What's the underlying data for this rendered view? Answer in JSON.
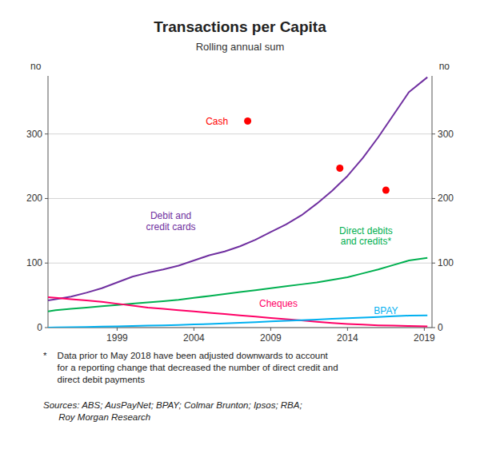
{
  "chart_data": {
    "type": "line",
    "title": "Transactions per Capita",
    "subtitle": "Rolling annual sum",
    "ylabel": "no",
    "xlim": [
      1994.5,
      2019.5
    ],
    "xticks": [
      1999,
      2004,
      2009,
      2014,
      2019
    ],
    "ylim": [
      0,
      390
    ],
    "yticks": [
      0,
      100,
      200,
      300
    ],
    "y2lim": [
      0,
      390
    ],
    "y2ticks": [
      0,
      100,
      200,
      300
    ],
    "grid": true,
    "x": [
      1994.5,
      1995,
      1996,
      1997,
      1998,
      1999,
      2000,
      2001,
      2002,
      2003,
      2004,
      2005,
      2006,
      2007,
      2008,
      2009,
      2010,
      2011,
      2012,
      2013,
      2014,
      2015,
      2016,
      2017,
      2018,
      2019.2
    ],
    "series": [
      {
        "name": "Debit and\ncredit cards",
        "type": "line",
        "color": "#7030A0",
        "label_x": 2002.5,
        "label_y": 165,
        "values": [
          42,
          44,
          48,
          54,
          61,
          70,
          79,
          85,
          90,
          96,
          104,
          112,
          118,
          126,
          136,
          148,
          160,
          174,
          192,
          212,
          235,
          263,
          295,
          330,
          365,
          388
        ]
      },
      {
        "name": "Direct debits\nand credits*",
        "type": "line",
        "color": "#00B050",
        "label_x": 2015.2,
        "label_y": 142,
        "values": [
          25,
          27,
          29,
          31,
          33,
          35,
          37,
          39,
          41,
          43,
          46,
          49,
          52,
          55,
          58,
          61,
          64,
          67,
          70,
          74,
          78,
          84,
          90,
          97,
          104,
          108
        ]
      },
      {
        "name": "Cheques",
        "type": "line",
        "color": "#FF0066",
        "label_x": 2009.5,
        "label_y": 38,
        "values": [
          47,
          46,
          44,
          42,
          40,
          37,
          34,
          31,
          29,
          27,
          25,
          23,
          21,
          19,
          17,
          15,
          13,
          11,
          9,
          7,
          5.5,
          4.5,
          3.5,
          3,
          2.5,
          2
        ]
      },
      {
        "name": "BPAY",
        "type": "line",
        "color": "#00B0F0",
        "label_x": 2016.5,
        "label_y": 26,
        "values": [
          0,
          0.2,
          0.5,
          1,
          1.5,
          2,
          2.5,
          3,
          3.5,
          4,
          4.8,
          5.5,
          6.5,
          7.5,
          8.5,
          9.5,
          10.5,
          11.5,
          12.5,
          13.5,
          14.5,
          15.5,
          16.5,
          17.5,
          18.5,
          19
        ]
      },
      {
        "name": "Cash",
        "type": "scatter",
        "marker": "circle",
        "color": "#FF0000",
        "label_x": 2005.5,
        "label_y": 320,
        "x": [
          2007.5,
          2013.5,
          2016.5
        ],
        "values": [
          320,
          247,
          213
        ]
      }
    ],
    "footnote_star": "*",
    "footnote_text": "   Data prior to May 2018 have been adjusted downwards to account\n   for a reporting change that decreased the number of direct credit and\n   direct debit payments",
    "sources": "Sources: ABS; AusPayNet; BPAY; Colmar Brunton; Ipsos; RBA;\n      Roy Morgan Research"
  }
}
